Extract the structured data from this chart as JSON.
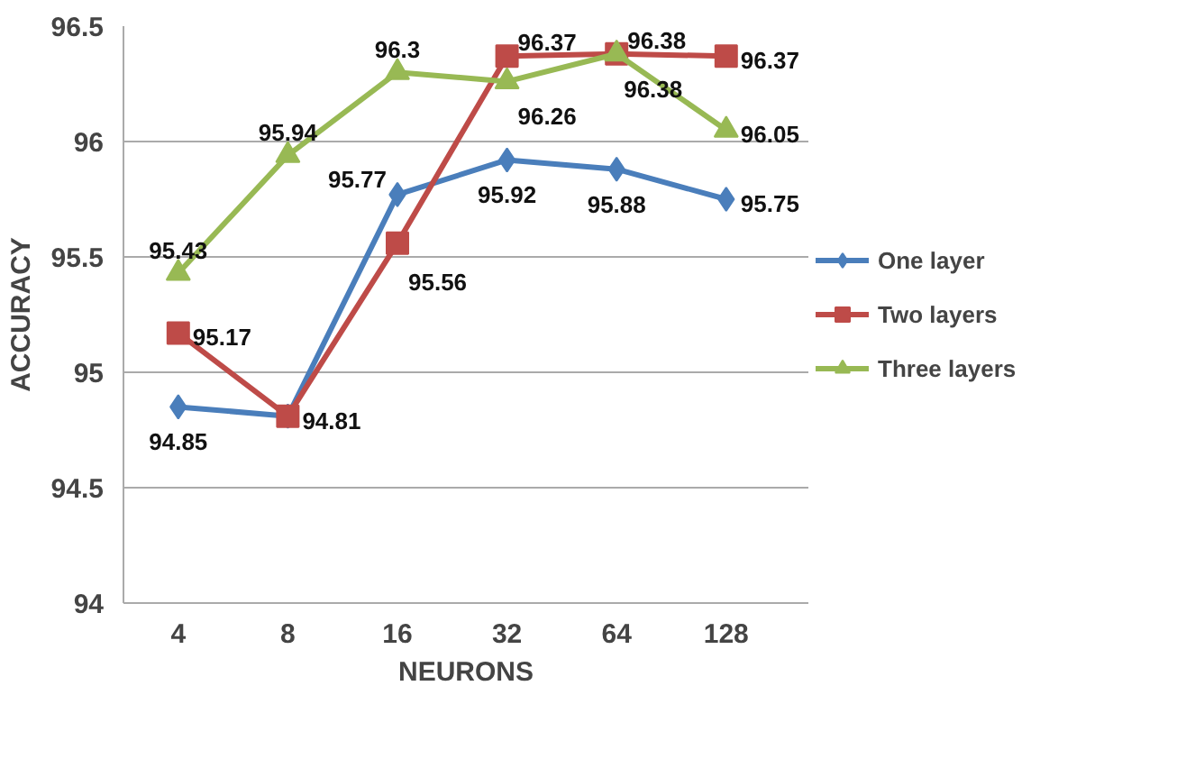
{
  "chart_data": {
    "type": "line",
    "xlabel": "NEURONS",
    "ylabel": "ACCURACY",
    "categories": [
      "4",
      "8",
      "16",
      "32",
      "64",
      "128"
    ],
    "ylim": [
      94,
      96.5
    ],
    "yticks": [
      94,
      94.5,
      95,
      95.5,
      96,
      96.5
    ],
    "grid": "y",
    "legend": "right",
    "series": [
      {
        "name": "One layer",
        "color": "#4a7ebb",
        "marker": "diamond",
        "values": [
          94.85,
          94.81,
          95.77,
          95.92,
          95.88,
          95.75
        ],
        "value_labels": [
          "94.85",
          null,
          "95.77",
          "95.92",
          "95.88",
          "95.75"
        ]
      },
      {
        "name": "Two layers",
        "color": "#be4b48",
        "marker": "square",
        "values": [
          95.17,
          94.81,
          95.56,
          96.37,
          96.38,
          96.37
        ],
        "value_labels": [
          "95.17",
          "94.81",
          "95.56",
          "96.37",
          "96.38",
          "96.37"
        ]
      },
      {
        "name": "Three layers",
        "color": "#98b954",
        "marker": "triangle",
        "values": [
          95.43,
          95.94,
          96.3,
          96.26,
          96.38,
          96.05
        ],
        "value_labels": [
          "95.43",
          "95.94",
          "96.3",
          "96.26",
          "96.38",
          "96.05"
        ]
      }
    ]
  }
}
